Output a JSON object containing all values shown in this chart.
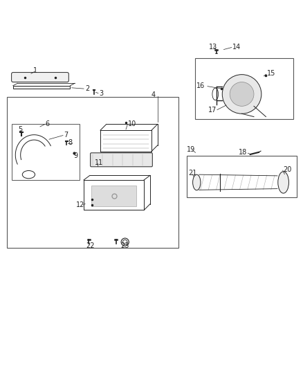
{
  "title": "",
  "bg_color": "#ffffff",
  "fig_width": 4.38,
  "fig_height": 5.33,
  "dpi": 100,
  "font_size": 7,
  "line_color": "#222222",
  "box_color": "#555555"
}
